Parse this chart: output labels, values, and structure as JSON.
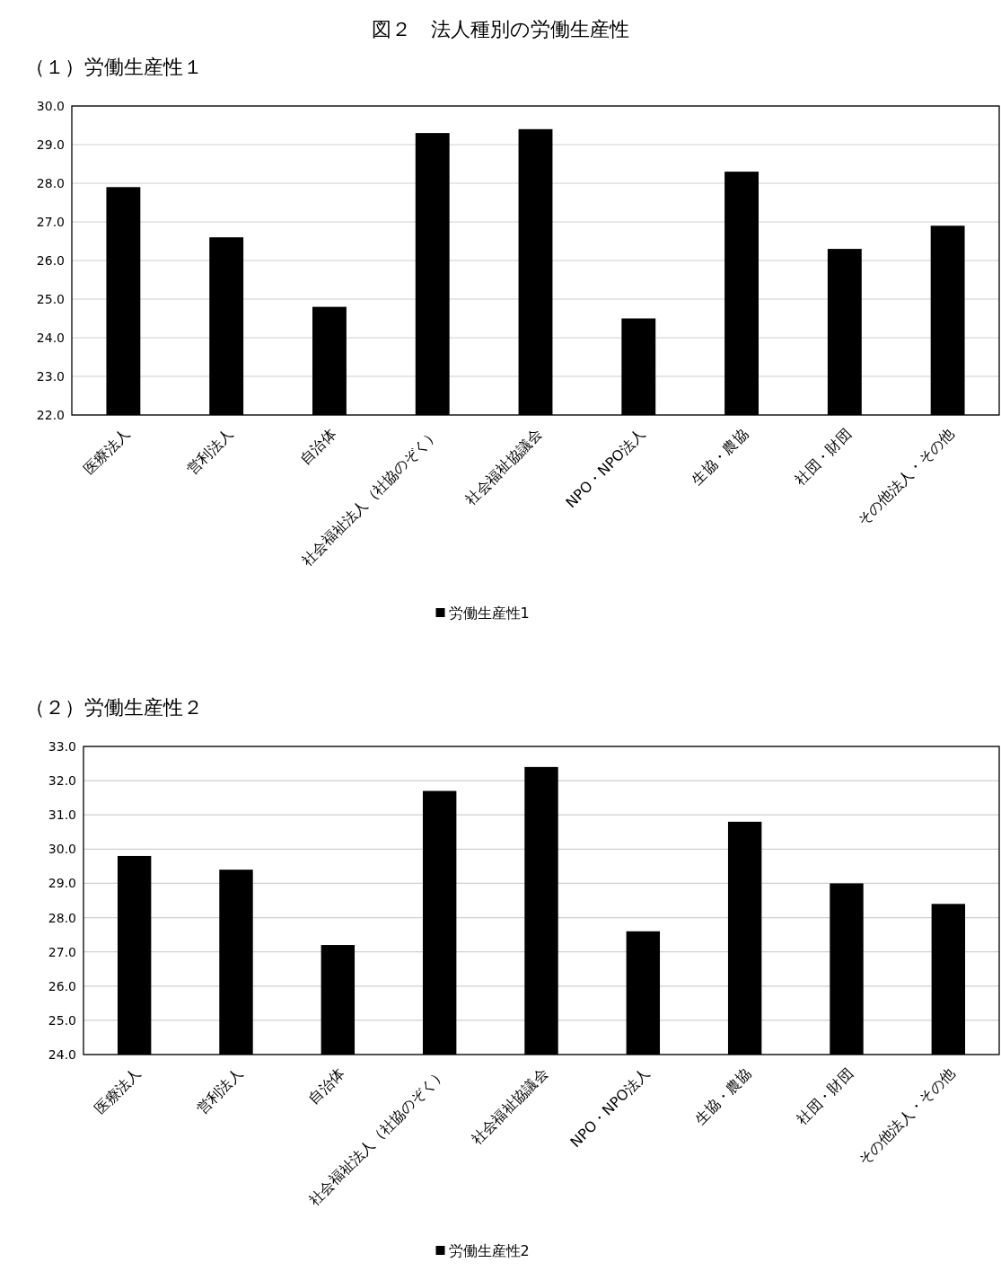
{
  "chart_data": [
    {
      "type": "bar",
      "title": "図２　法人種別の労働生産性",
      "subtitle": "（１）労働生産性１",
      "categories": [
        "医療法人",
        "営利法人",
        "自治体",
        "社会福祉法人（社協のぞく）",
        "社会福祉協議会",
        "NPO・NPO法人",
        "生協・農協",
        "社団・財団",
        "その他法人・その他"
      ],
      "series": [
        {
          "name": "労働生産性1",
          "color": "#000000",
          "values": [
            27.9,
            26.6,
            24.8,
            29.3,
            29.4,
            24.5,
            28.3,
            26.3,
            26.9
          ]
        }
      ],
      "ylim": [
        22,
        30
      ],
      "yticks": [
        {
          "value": 22,
          "label": "22.0"
        },
        {
          "value": 23,
          "label": "23.0"
        },
        {
          "value": 24,
          "label": "24.0"
        },
        {
          "value": 25,
          "label": "25.0"
        },
        {
          "value": 26,
          "label": "26.0"
        },
        {
          "value": 27,
          "label": "27.0"
        },
        {
          "value": 28,
          "label": "28.0"
        },
        {
          "value": 29,
          "label": "29.0"
        },
        {
          "value": 30,
          "label": "30.0"
        }
      ],
      "grid": "y",
      "legend": "bottom"
    },
    {
      "type": "bar",
      "title": "（２）労働生産性２",
      "categories": [
        "医療法人",
        "営利法人",
        "自治体",
        "社会福祉法人（社協のぞく）",
        "社会福祉協議会",
        "NPO・NPO法人",
        "生協・農協",
        "社団・財団",
        "その他法人・その他"
      ],
      "series": [
        {
          "name": "労働生産性2",
          "color": "#000000",
          "values": [
            29.8,
            29.4,
            27.2,
            31.7,
            32.4,
            27.6,
            30.8,
            29.0,
            28.4
          ]
        }
      ],
      "ylim": [
        24,
        33
      ],
      "yticks": [
        {
          "value": 24,
          "label": "24.0"
        },
        {
          "value": 25,
          "label": "25.0"
        },
        {
          "value": 26,
          "label": "26.0"
        },
        {
          "value": 27,
          "label": "27.0"
        },
        {
          "value": 28,
          "label": "28.0"
        },
        {
          "value": 29,
          "label": "29.0"
        },
        {
          "value": 30,
          "label": "30.0"
        },
        {
          "value": 31,
          "label": "31.0"
        },
        {
          "value": 32,
          "label": "32.0"
        },
        {
          "value": 33,
          "label": "33.0"
        }
      ],
      "grid": "y",
      "legend": "bottom"
    }
  ]
}
